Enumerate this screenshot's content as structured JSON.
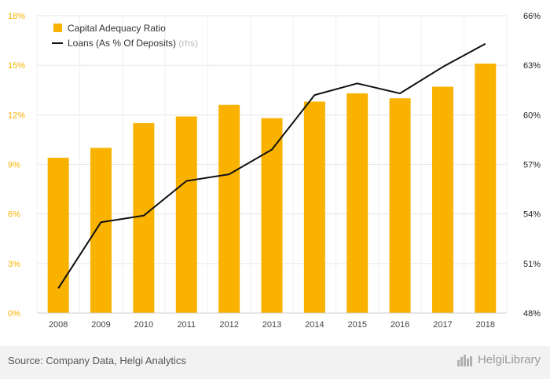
{
  "chart_data": {
    "type": "bar",
    "categories": [
      "2008",
      "2009",
      "2010",
      "2011",
      "2012",
      "2013",
      "2014",
      "2015",
      "2016",
      "2017",
      "2018"
    ],
    "series": [
      {
        "name": "Capital Adequacy Ratio",
        "type": "bar",
        "axis": "left",
        "color": "#f9b200",
        "values": [
          9.4,
          10.0,
          11.5,
          11.9,
          12.6,
          11.8,
          12.8,
          13.3,
          13.0,
          13.7,
          15.1
        ]
      },
      {
        "name": "Loans (As % Of Deposits)",
        "name_suffix": "(rhs)",
        "type": "line",
        "axis": "right",
        "color": "#111111",
        "values": [
          49.5,
          53.5,
          53.9,
          56.0,
          56.4,
          57.9,
          61.2,
          61.9,
          61.3,
          62.9,
          64.3
        ]
      }
    ],
    "y_left": {
      "min": 0,
      "max": 18,
      "ticks": [
        "0%",
        "3%",
        "6%",
        "9%",
        "12%",
        "15%",
        "18%"
      ],
      "color": "#f9b200"
    },
    "y_right": {
      "min": 48,
      "max": 66,
      "ticks": [
        "48%",
        "51%",
        "54%",
        "57%",
        "60%",
        "63%",
        "66%"
      ],
      "color": "#222222"
    },
    "grid": true,
    "legend_position": "top-left"
  },
  "footer": {
    "source": "Source: Company Data, Helgi Analytics",
    "brand": "HelgiLibrary",
    "brand_icon": "city-skyline-icon"
  }
}
